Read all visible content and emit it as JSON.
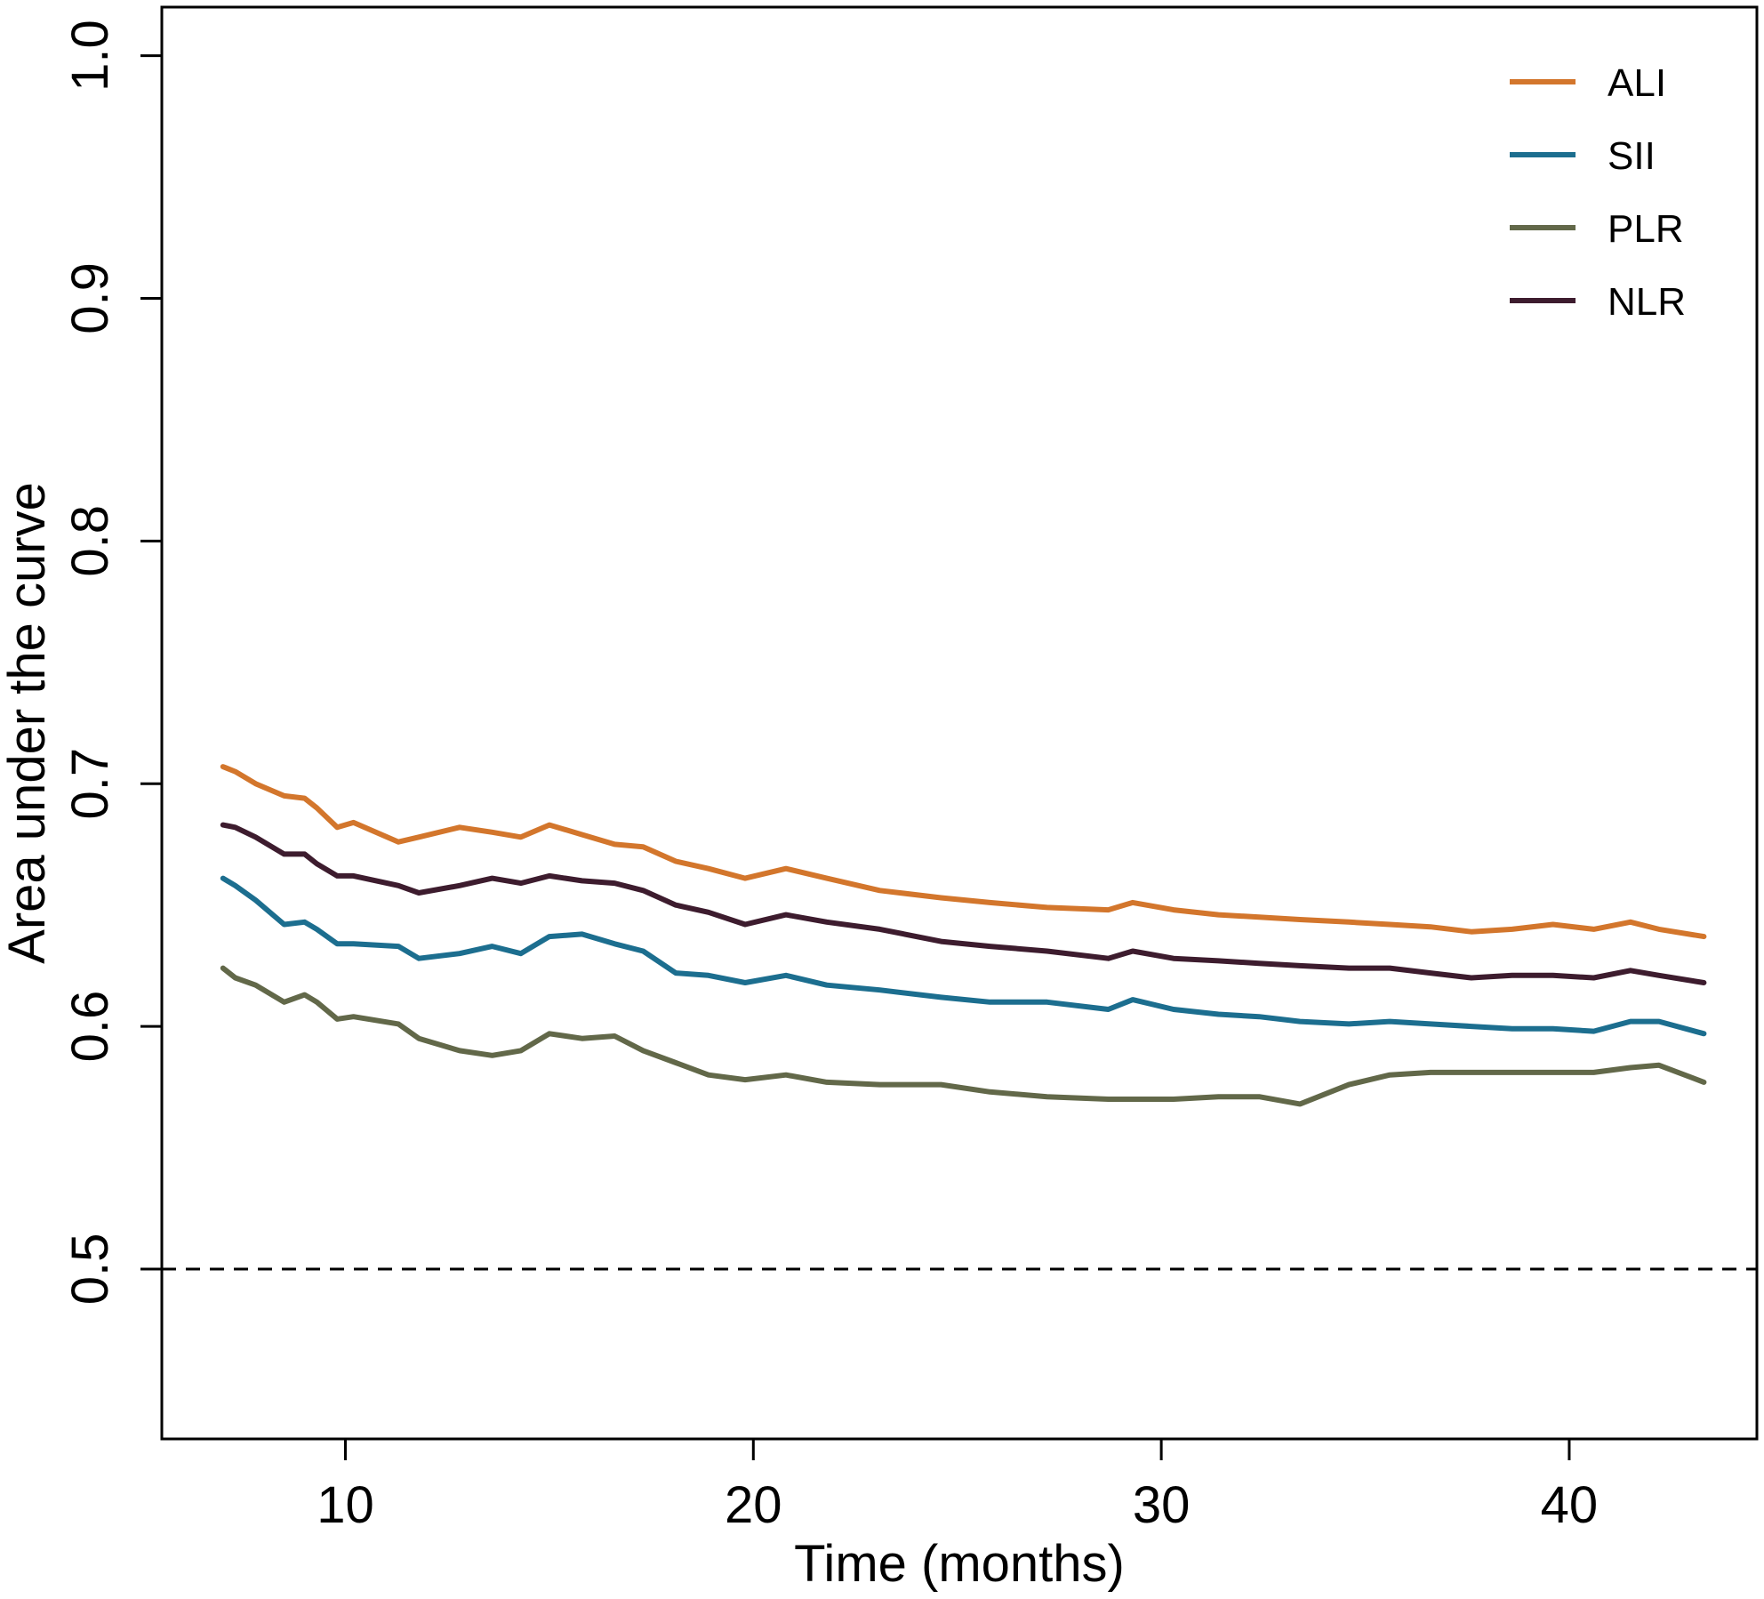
{
  "chart_data": {
    "type": "line",
    "title": "",
    "xlabel": "Time (months)",
    "ylabel": "Area under the curve",
    "xlim": [
      5.5,
      44.6
    ],
    "ylim": [
      0.43,
      1.02
    ],
    "xticks": [
      10,
      20,
      30,
      40
    ],
    "xtick_labels": [
      "10",
      "20",
      "30",
      "40"
    ],
    "yticks": [
      0.5,
      0.6,
      0.7,
      0.8,
      0.9,
      1.0
    ],
    "ytick_labels": [
      "0.5",
      "0.6",
      "0.7",
      "0.8",
      "0.9",
      "1.0"
    ],
    "reference_line": {
      "y": 0.5,
      "style": "dashed"
    },
    "legend_position": "top-right",
    "x": [
      7,
      7.3,
      7.8,
      8.5,
      9.0,
      9.3,
      9.8,
      10.2,
      11.3,
      11.8,
      12.8,
      13.6,
      14.3,
      15.0,
      15.8,
      16.6,
      17.3,
      18.1,
      18.9,
      19.8,
      20.8,
      21.8,
      23.1,
      24.6,
      25.8,
      27.2,
      28.7,
      29.3,
      30.3,
      31.4,
      32.4,
      33.4,
      34.6,
      35.6,
      36.6,
      37.6,
      38.6,
      39.6,
      40.6,
      41.5,
      42.2,
      43.3
    ],
    "series": [
      {
        "name": "ALI",
        "color": "#d3762c",
        "values": [
          0.707,
          0.705,
          0.7,
          0.695,
          0.694,
          0.69,
          0.682,
          0.684,
          0.676,
          0.678,
          0.682,
          0.68,
          0.678,
          0.683,
          0.679,
          0.675,
          0.674,
          0.668,
          0.665,
          0.661,
          0.665,
          0.661,
          0.656,
          0.653,
          0.651,
          0.649,
          0.648,
          0.651,
          0.648,
          0.646,
          0.645,
          0.644,
          0.643,
          0.642,
          0.641,
          0.639,
          0.64,
          0.642,
          0.64,
          0.643,
          0.64,
          0.637
        ]
      },
      {
        "name": "SII",
        "color": "#1c6e8f",
        "values": [
          0.661,
          0.658,
          0.652,
          0.642,
          0.643,
          0.64,
          0.634,
          0.634,
          0.633,
          0.628,
          0.63,
          0.633,
          0.63,
          0.637,
          0.638,
          0.634,
          0.631,
          0.622,
          0.621,
          0.618,
          0.621,
          0.617,
          0.615,
          0.612,
          0.61,
          0.61,
          0.607,
          0.611,
          0.607,
          0.605,
          0.604,
          0.602,
          0.601,
          0.602,
          0.601,
          0.6,
          0.599,
          0.599,
          0.598,
          0.602,
          0.602,
          0.597
        ]
      },
      {
        "name": "PLR",
        "color": "#626849",
        "values": [
          0.624,
          0.62,
          0.617,
          0.61,
          0.613,
          0.61,
          0.603,
          0.604,
          0.601,
          0.595,
          0.59,
          0.588,
          0.59,
          0.597,
          0.595,
          0.596,
          0.59,
          0.585,
          0.58,
          0.578,
          0.58,
          0.577,
          0.576,
          0.576,
          0.573,
          0.571,
          0.57,
          0.57,
          0.57,
          0.571,
          0.571,
          0.568,
          0.576,
          0.58,
          0.581,
          0.581,
          0.581,
          0.581,
          0.581,
          0.583,
          0.584,
          0.577
        ]
      },
      {
        "name": "NLR",
        "color": "#3d1c2e",
        "values": [
          0.683,
          0.682,
          0.678,
          0.671,
          0.671,
          0.667,
          0.662,
          0.662,
          0.658,
          0.655,
          0.658,
          0.661,
          0.659,
          0.662,
          0.66,
          0.659,
          0.656,
          0.65,
          0.647,
          0.642,
          0.646,
          0.643,
          0.64,
          0.635,
          0.633,
          0.631,
          0.628,
          0.631,
          0.628,
          0.627,
          0.626,
          0.625,
          0.624,
          0.624,
          0.622,
          0.62,
          0.621,
          0.621,
          0.62,
          0.623,
          0.621,
          0.618
        ]
      }
    ]
  }
}
